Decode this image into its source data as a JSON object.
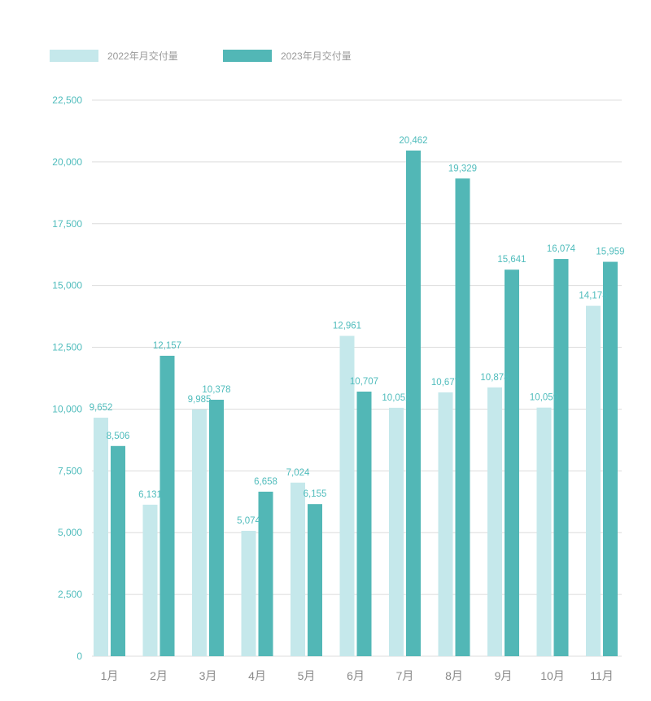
{
  "colors": {
    "series_2022": "#c5e8eb",
    "series_2023": "#52b7b6",
    "tick_label": "#4fbcbc",
    "grid": "#dcdcdc",
    "category_label": "#8a8a8a",
    "legend_text": "#9a9a9a"
  },
  "chart_data": {
    "type": "bar",
    "title": "",
    "xlabel": "",
    "ylabel": "",
    "ylim": [
      0,
      22500
    ],
    "yticks": [
      0,
      2500,
      5000,
      7500,
      10000,
      12500,
      15000,
      17500,
      20000,
      22500
    ],
    "ytick_labels": [
      "0",
      "2,500",
      "5,000",
      "7,500",
      "10,000",
      "12,500",
      "15,000",
      "17,500",
      "20,000",
      "22,500"
    ],
    "grid": true,
    "legend_position": "top-left",
    "categories": [
      "1月",
      "2月",
      "3月",
      "4月",
      "5月",
      "6月",
      "7月",
      "8月",
      "9月",
      "10月",
      "11月"
    ],
    "series": [
      {
        "name": "2022年月交付量",
        "color": "#c5e8eb",
        "values": [
          9652,
          6131,
          9985,
          5074,
          7024,
          12961,
          10052,
          10677,
          10878,
          10059,
          14178
        ],
        "labels": [
          "9,652",
          "6,131",
          "9,985",
          "5,074",
          "7,024",
          "12,961",
          "10,052",
          "10,677",
          "10,878",
          "10,059",
          "14,178"
        ]
      },
      {
        "name": "2023年月交付量",
        "color": "#52b7b6",
        "values": [
          8506,
          12157,
          10378,
          6658,
          6155,
          10707,
          20462,
          19329,
          15641,
          16074,
          15959
        ],
        "labels": [
          "8,506",
          "12,157",
          "10,378",
          "6,658",
          "6,155",
          "10,707",
          "20,462",
          "19,329",
          "15,641",
          "16,074",
          "15,959"
        ]
      }
    ]
  }
}
